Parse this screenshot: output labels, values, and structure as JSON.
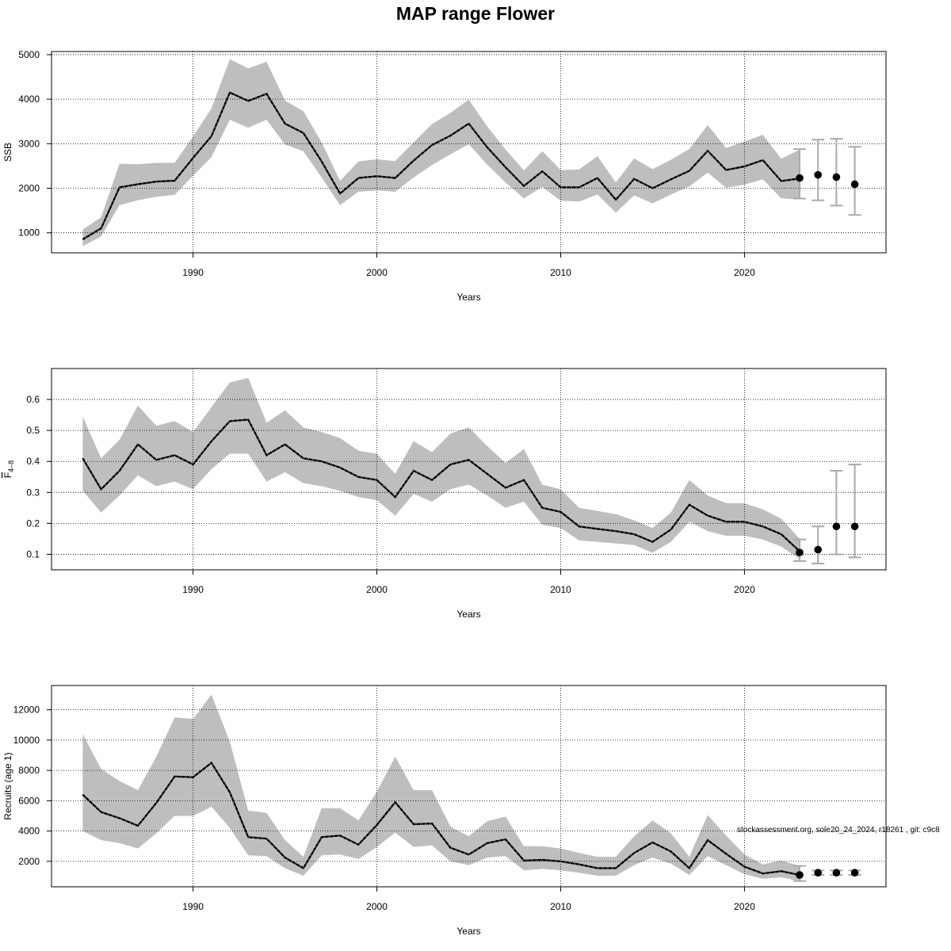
{
  "title": "MAP range Flower",
  "footnote": "stockassessment.org, sole20_24_2024, r18261 , git: c9c8",
  "colors": {
    "band": "#bebebe",
    "line": "#000000",
    "grid": "#000000",
    "errorbar": "#aaaaaa"
  },
  "chart_data": [
    {
      "type": "line",
      "name": "ssb",
      "ylabel": "SSB",
      "xlabel": "Years",
      "xlim": [
        1982.3,
        2027.7
      ],
      "ylim": [
        550,
        5070
      ],
      "xticks": [
        1990,
        2000,
        2010,
        2020
      ],
      "yticks": [
        1000,
        2000,
        3000,
        4000,
        5000
      ],
      "grid": true,
      "x": [
        1984,
        1985,
        1986,
        1987,
        1988,
        1989,
        1990,
        1991,
        1992,
        1993,
        1994,
        1995,
        1996,
        1997,
        1998,
        1999,
        2000,
        2001,
        2002,
        2003,
        2004,
        2005,
        2006,
        2007,
        2008,
        2009,
        2010,
        2011,
        2012,
        2013,
        2014,
        2015,
        2016,
        2017,
        2018,
        2019,
        2020,
        2021,
        2022,
        2023
      ],
      "estimate": [
        850,
        1100,
        2020,
        2090,
        2150,
        2170,
        2680,
        3170,
        4150,
        3960,
        4120,
        3450,
        3240,
        2600,
        1880,
        2230,
        2270,
        2230,
        2620,
        2970,
        3180,
        3450,
        2920,
        2470,
        2050,
        2380,
        2020,
        2020,
        2230,
        1740,
        2210,
        2000,
        2200,
        2390,
        2840,
        2410,
        2490,
        2630,
        2160,
        2220
      ],
      "low": [
        700,
        920,
        1620,
        1730,
        1810,
        1850,
        2280,
        2700,
        3540,
        3360,
        3540,
        2980,
        2830,
        2240,
        1620,
        1920,
        1950,
        1920,
        2240,
        2520,
        2760,
        2990,
        2530,
        2130,
        1770,
        2030,
        1720,
        1700,
        1860,
        1450,
        1840,
        1660,
        1860,
        2040,
        2350,
        2010,
        2080,
        2200,
        1770,
        1750
      ],
      "high": [
        1070,
        1350,
        2550,
        2540,
        2570,
        2570,
        3160,
        3790,
        4900,
        4690,
        4840,
        3970,
        3730,
        3030,
        2170,
        2600,
        2650,
        2610,
        3030,
        3440,
        3690,
        3990,
        3390,
        2870,
        2400,
        2830,
        2410,
        2420,
        2720,
        2130,
        2670,
        2430,
        2640,
        2880,
        3420,
        2900,
        3050,
        3200,
        2660,
        2870
      ],
      "forecast": {
        "x": [
          2023,
          2024,
          2025,
          2026
        ],
        "median": [
          2230,
          2300,
          2250,
          2090
        ],
        "low": [
          1770,
          1730,
          1610,
          1400
        ],
        "high": [
          2880,
          3090,
          3110,
          2930
        ]
      }
    },
    {
      "type": "line",
      "name": "fbar",
      "ylabel": "F̄ 4–8",
      "ylabel_main": "F",
      "ylabel_sub": "4–8",
      "xlabel": "Years",
      "xlim": [
        1982.3,
        2027.7
      ],
      "ylim": [
        0.05,
        0.7
      ],
      "xticks": [
        1990,
        2000,
        2010,
        2020
      ],
      "yticks": [
        0.1,
        0.2,
        0.3,
        0.4,
        0.5,
        0.6
      ],
      "grid": true,
      "x": [
        1984,
        1985,
        1986,
        1987,
        1988,
        1989,
        1990,
        1991,
        1992,
        1993,
        1994,
        1995,
        1996,
        1997,
        1998,
        1999,
        2000,
        2001,
        2002,
        2003,
        2004,
        2005,
        2006,
        2007,
        2008,
        2009,
        2010,
        2011,
        2012,
        2013,
        2014,
        2015,
        2016,
        2017,
        2018,
        2019,
        2020,
        2021,
        2022,
        2023
      ],
      "estimate": [
        0.41,
        0.31,
        0.37,
        0.455,
        0.405,
        0.42,
        0.39,
        0.465,
        0.53,
        0.535,
        0.42,
        0.455,
        0.41,
        0.4,
        0.38,
        0.35,
        0.34,
        0.285,
        0.37,
        0.34,
        0.39,
        0.405,
        0.36,
        0.315,
        0.34,
        0.25,
        0.237,
        0.19,
        0.182,
        0.175,
        0.165,
        0.14,
        0.18,
        0.26,
        0.225,
        0.205,
        0.205,
        0.19,
        0.165,
        0.11
      ],
      "low": [
        0.305,
        0.235,
        0.29,
        0.355,
        0.32,
        0.335,
        0.31,
        0.375,
        0.425,
        0.425,
        0.335,
        0.365,
        0.33,
        0.32,
        0.305,
        0.285,
        0.275,
        0.225,
        0.295,
        0.27,
        0.31,
        0.325,
        0.29,
        0.25,
        0.27,
        0.195,
        0.185,
        0.145,
        0.14,
        0.135,
        0.13,
        0.105,
        0.14,
        0.205,
        0.175,
        0.16,
        0.16,
        0.148,
        0.125,
        0.085
      ],
      "high": [
        0.545,
        0.41,
        0.47,
        0.58,
        0.515,
        0.53,
        0.495,
        0.575,
        0.655,
        0.67,
        0.525,
        0.565,
        0.51,
        0.495,
        0.475,
        0.435,
        0.425,
        0.36,
        0.465,
        0.43,
        0.49,
        0.51,
        0.45,
        0.395,
        0.44,
        0.325,
        0.31,
        0.25,
        0.24,
        0.23,
        0.21,
        0.185,
        0.235,
        0.34,
        0.29,
        0.265,
        0.265,
        0.245,
        0.215,
        0.15
      ],
      "forecast": {
        "x": [
          2023,
          2024,
          2025,
          2026
        ],
        "median": [
          0.106,
          0.115,
          0.19,
          0.19
        ],
        "low": [
          0.078,
          0.07,
          0.1,
          0.09
        ],
        "high": [
          0.148,
          0.19,
          0.37,
          0.39
        ]
      }
    },
    {
      "type": "line",
      "name": "recruits",
      "ylabel": "Recruits (age 1)",
      "xlabel": "Years",
      "xlim": [
        1982.3,
        2027.7
      ],
      "ylim": [
        320,
        13600
      ],
      "xticks": [
        1990,
        2000,
        2010,
        2020
      ],
      "yticks": [
        2000,
        4000,
        6000,
        8000,
        10000,
        12000
      ],
      "grid": true,
      "x": [
        1984,
        1985,
        1986,
        1987,
        1988,
        1989,
        1990,
        1991,
        1992,
        1993,
        1994,
        1995,
        1996,
        1997,
        1998,
        1999,
        2000,
        2001,
        2002,
        2003,
        2004,
        2005,
        2006,
        2007,
        2008,
        2009,
        2010,
        2011,
        2012,
        2013,
        2014,
        2015,
        2016,
        2017,
        2018,
        2019,
        2020,
        2021,
        2022,
        2023
      ],
      "estimate": [
        6400,
        5250,
        4850,
        4350,
        5850,
        7600,
        7550,
        8500,
        6550,
        3600,
        3500,
        2250,
        1550,
        3600,
        3700,
        3100,
        4400,
        5900,
        4450,
        4500,
        2900,
        2450,
        3200,
        3450,
        2050,
        2100,
        2000,
        1800,
        1550,
        1550,
        2550,
        3250,
        2650,
        1550,
        3400,
        2500,
        1650,
        1200,
        1350,
        1100
      ],
      "low": [
        4000,
        3400,
        3200,
        2850,
        3850,
        5000,
        5000,
        5600,
        4200,
        2400,
        2350,
        1550,
        1050,
        2400,
        2450,
        2150,
        2950,
        3900,
        2950,
        3050,
        2000,
        1750,
        2250,
        2350,
        1400,
        1500,
        1400,
        1250,
        1050,
        1050,
        1750,
        2250,
        1850,
        1100,
        2350,
        1750,
        1150,
        850,
        950,
        700
      ],
      "high": [
        10400,
        8100,
        7300,
        6700,
        8900,
        11500,
        11400,
        13000,
        9900,
        5350,
        5200,
        3400,
        2300,
        5500,
        5500,
        4700,
        6600,
        8900,
        6700,
        6700,
        4300,
        3650,
        4650,
        4950,
        3000,
        3000,
        2850,
        2550,
        2300,
        2300,
        3650,
        4700,
        3850,
        2300,
        5050,
        3700,
        2450,
        1800,
        2050,
        1700
      ],
      "forecast": {
        "x": [
          2023,
          2024,
          2025,
          2026
        ],
        "median": [
          1100,
          1250,
          1250,
          1250
        ],
        "low": [
          700,
          1100,
          1100,
          1100
        ],
        "high": [
          1700,
          1400,
          1400,
          1400
        ]
      }
    }
  ]
}
